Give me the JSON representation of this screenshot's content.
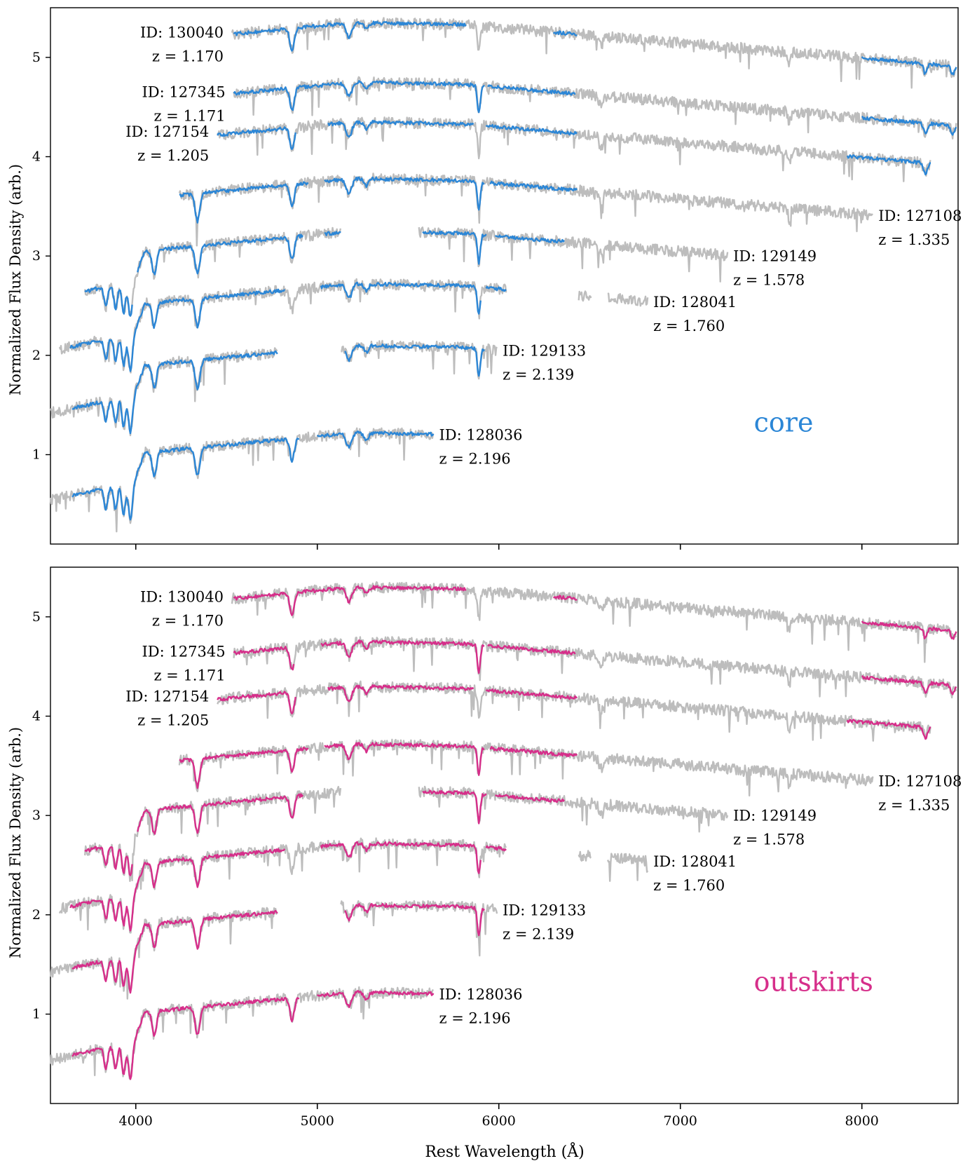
{
  "figure": {
    "xlabel": "Rest Wavelength (Å)",
    "ylabel": "Normalized Flux Density (arb.)"
  },
  "chart_data": [
    {
      "type": "line",
      "panel": "top",
      "tag": "core",
      "tag_color": "#2b86d6",
      "model_color": "#2b86d6",
      "data_color": "#bdbdbd",
      "xlabel": "",
      "ylabel": "Normalized Flux Density (arb.)",
      "xlim": [
        3530,
        8530
      ],
      "ylim": [
        0.1,
        5.5
      ],
      "xticks": [
        4000,
        5000,
        6000,
        7000,
        8000
      ],
      "yticks": [
        1,
        2,
        3,
        4,
        5
      ],
      "xtick_labels_shown": false,
      "series": [
        {
          "id_label": "ID: 130040",
          "z_label": "z = 1.170",
          "offset": 5.05,
          "start": 4530,
          "end": 8520,
          "model_segments": [
            [
              4540,
              5820
            ],
            [
              6300,
              6430
            ],
            [
              8000,
              8520
            ]
          ],
          "label_side": "left"
        },
        {
          "id_label": "ID: 127345",
          "z_label": "z = 1.171",
          "offset": 4.45,
          "start": 4540,
          "end": 8520,
          "model_segments": [
            [
              4540,
              5920
            ],
            [
              5940,
              6420
            ],
            [
              8000,
              8520
            ]
          ],
          "label_side": "left"
        },
        {
          "id_label": "ID: 127154",
          "z_label": "z = 1.205",
          "offset": 4.05,
          "start": 4450,
          "end": 8380,
          "model_segments": [
            [
              4450,
              4880
            ],
            [
              5060,
              5860
            ],
            [
              5930,
              6430
            ],
            [
              7920,
              8380
            ]
          ],
          "label_side": "left"
        },
        {
          "id_label": "ID: 127108",
          "z_label": "z = 1.335",
          "offset": 3.48,
          "start": 4240,
          "end": 8060,
          "model_segments": [
            [
              4240,
              4950
            ],
            [
              5040,
              5920
            ],
            [
              5950,
              6430
            ]
          ],
          "label_side": "right"
        },
        {
          "id_label": "ID: 129149",
          "z_label": "z = 1.578",
          "offset": 2.95,
          "start": 3720,
          "end": 7260,
          "gaps": [
            [
              5130,
              5560
            ]
          ],
          "model_segments": [
            [
              3720,
              3980
            ],
            [
              4010,
              4920
            ],
            [
              5040,
              5130
            ],
            [
              5580,
              5930
            ],
            [
              5980,
              6360
            ]
          ],
          "label_side": "right"
        },
        {
          "id_label": "ID: 128041",
          "z_label": "z = 1.760",
          "offset": 2.42,
          "start": 3580,
          "end": 6820,
          "gaps": [
            [
              6040,
              6440
            ],
            [
              6510,
              6600
            ]
          ],
          "model_segments": [
            [
              3640,
              4820
            ],
            [
              5020,
              5900
            ],
            [
              5930,
              6040
            ]
          ],
          "label_side": "right"
        },
        {
          "id_label": "ID: 129133",
          "z_label": "z = 2.139",
          "offset": 1.8,
          "start": 3530,
          "end": 5990,
          "gaps": [
            [
              4780,
              5130
            ]
          ],
          "model_segments": [
            [
              3650,
              4780
            ],
            [
              5150,
              5920
            ]
          ],
          "label_side": "right"
        },
        {
          "id_label": "ID: 128036",
          "z_label": "z = 2.196",
          "offset": 0.92,
          "start": 3530,
          "end": 5640,
          "model_segments": [
            [
              3650,
              4900
            ],
            [
              5000,
              5640
            ]
          ],
          "label_side": "right"
        }
      ]
    },
    {
      "type": "line",
      "panel": "bottom",
      "tag": "outskirts",
      "tag_color": "#d62e8a",
      "model_color": "#d62e8a",
      "data_color": "#bdbdbd",
      "xlabel": "Rest Wavelength (Å)",
      "ylabel": "Normalized Flux Density (arb.)",
      "xlim": [
        3530,
        8530
      ],
      "ylim": [
        0.1,
        5.5
      ],
      "xticks": [
        4000,
        5000,
        6000,
        7000,
        8000
      ],
      "yticks": [
        1,
        2,
        3,
        4,
        5
      ],
      "xtick_labels_shown": true,
      "series": [
        {
          "id_label": "ID: 130040",
          "z_label": "z = 1.170",
          "offset": 5.0,
          "start": 4530,
          "end": 8520,
          "model_segments": [
            [
              4540,
              5820
            ],
            [
              6300,
              6430
            ],
            [
              8000,
              8520
            ]
          ],
          "label_side": "left"
        },
        {
          "id_label": "ID: 127345",
          "z_label": "z = 1.171",
          "offset": 4.45,
          "start": 4540,
          "end": 8520,
          "model_segments": [
            [
              4540,
              4870
            ],
            [
              5020,
              5920
            ],
            [
              5940,
              6420
            ],
            [
              8000,
              8520
            ]
          ],
          "label_side": "left"
        },
        {
          "id_label": "ID: 127154",
          "z_label": "z = 1.205",
          "offset": 4.0,
          "start": 4450,
          "end": 8380,
          "model_segments": [
            [
              4450,
              4880
            ],
            [
              5060,
              5860
            ],
            [
              5930,
              6430
            ],
            [
              7920,
              8380
            ]
          ],
          "label_side": "left"
        },
        {
          "id_label": "ID: 127108",
          "z_label": "z = 1.335",
          "offset": 3.42,
          "start": 4240,
          "end": 8060,
          "model_segments": [
            [
              4240,
              4950
            ],
            [
              5040,
              5920
            ],
            [
              5950,
              6430
            ]
          ],
          "label_side": "right"
        },
        {
          "id_label": "ID: 129149",
          "z_label": "z = 1.578",
          "offset": 2.95,
          "start": 3720,
          "end": 7260,
          "gaps": [
            [
              5130,
              5560
            ]
          ],
          "model_segments": [
            [
              3720,
              3980
            ],
            [
              4010,
              4920
            ],
            [
              5580,
              5930
            ],
            [
              5980,
              6360
            ]
          ],
          "label_side": "right"
        },
        {
          "id_label": "ID: 128041",
          "z_label": "z = 1.760",
          "offset": 2.42,
          "start": 3580,
          "end": 6820,
          "gaps": [
            [
              6040,
              6440
            ],
            [
              6510,
              6600
            ]
          ],
          "model_segments": [
            [
              3640,
              4820
            ],
            [
              5020,
              5900
            ],
            [
              5930,
              6040
            ]
          ],
          "label_side": "right"
        },
        {
          "id_label": "ID: 129133",
          "z_label": "z = 2.139",
          "offset": 1.8,
          "start": 3530,
          "end": 5990,
          "gaps": [
            [
              4780,
              5130
            ]
          ],
          "model_segments": [
            [
              3650,
              4780
            ],
            [
              5150,
              5920
            ]
          ],
          "label_side": "right"
        },
        {
          "id_label": "ID: 128036",
          "z_label": "z = 2.196",
          "offset": 0.92,
          "start": 3530,
          "end": 5640,
          "model_segments": [
            [
              3650,
              4900
            ],
            [
              5000,
              5640
            ]
          ],
          "label_side": "right"
        }
      ]
    }
  ]
}
